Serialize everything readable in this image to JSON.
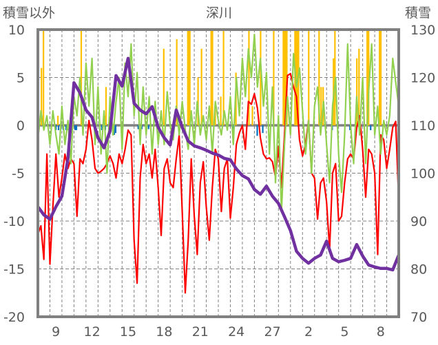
{
  "chart_data": {
    "type": "line",
    "title": "深川",
    "ylabel_left": "積雪以外",
    "ylabel_right": "積雪",
    "x_unit": "day index from Feb 8 (30 days, Feb 8 – Mar 9)",
    "xlim": [
      0,
      30
    ],
    "ylim_left": [
      -20,
      10
    ],
    "ylim_right": [
      70,
      130
    ],
    "yticks_left": [
      10,
      5,
      0,
      -5,
      -10,
      -15,
      -20
    ],
    "yticks_right": [
      130,
      120,
      110,
      100,
      90,
      80,
      70
    ],
    "xticks": [
      {
        "pos": 1.5,
        "label": "9"
      },
      {
        "pos": 4.5,
        "label": "12"
      },
      {
        "pos": 7.5,
        "label": "15"
      },
      {
        "pos": 10.5,
        "label": "18"
      },
      {
        "pos": 13.5,
        "label": "21"
      },
      {
        "pos": 16.5,
        "label": "24"
      },
      {
        "pos": 19.5,
        "label": "27"
      },
      {
        "pos": 22.5,
        "label": "2"
      },
      {
        "pos": 25.5,
        "label": "5"
      },
      {
        "pos": 28.5,
        "label": "8"
      }
    ],
    "grid": true,
    "colors": {
      "red": "#ff0000",
      "green": "#92d050",
      "purple": "#7030a0",
      "orange": "#ffc000",
      "blue": "#0070c0",
      "axis": "#808080",
      "text": "#595959"
    },
    "series": [
      {
        "name": "red",
        "axis": "left",
        "step": 0.25,
        "values": [
          -11.4,
          -10.5,
          -14,
          -3,
          -14.5,
          -8.5,
          -3,
          -7.5,
          -5.5,
          -3,
          -4.5,
          -3.5,
          -4,
          -9.5,
          -3.5,
          -4,
          -2.5,
          0.5,
          -1.5,
          -4.5,
          -5,
          -4.8,
          -4.5,
          -4,
          -3.2,
          -4,
          -5.5,
          -3,
          -4,
          -2.5,
          -0.5,
          -1,
          -12,
          -16.5,
          -5.5,
          -2,
          -4,
          -3,
          -5.5,
          -2.5,
          -6.5,
          -11.5,
          -4.5,
          -3.5,
          -6,
          -6.5,
          -3.5,
          -1,
          -9,
          -17.5,
          -12,
          -3.5,
          -9.5,
          -13.5,
          -6,
          -3.8,
          -8.5,
          -12,
          -6.5,
          -2.5,
          -3.5,
          -9,
          -4.5,
          -3.5,
          -9.7,
          -6.5,
          -2,
          -0.8,
          0,
          -2.5,
          2.5,
          2.2,
          3.3,
          1.8,
          -1.3,
          -3,
          -3.5,
          -3.4,
          -3.8,
          -5.4,
          -2.2,
          -6.5,
          -1,
          5.2,
          5.4,
          4,
          3,
          -1.5,
          -3.2,
          -2,
          0.5,
          -5,
          -5.5,
          -9.8,
          -6,
          -5.5,
          -8,
          -13,
          -5,
          -4,
          -10,
          -9.5,
          -6,
          -3.5,
          -3,
          -3.5,
          -0.3,
          1,
          -2.5,
          -7.5,
          -2.5,
          -3,
          -5,
          -13.5,
          -1,
          -1.5,
          -4.5,
          -2.5,
          -0.2,
          0.4,
          -8
        ]
      },
      {
        "name": "green",
        "axis": "left",
        "step": 0.25,
        "values": [
          -1.5,
          1.5,
          -0.5,
          1,
          -2,
          1.5,
          -1,
          -3,
          2,
          -2,
          0.5,
          -4,
          3,
          1,
          5,
          -1,
          6.5,
          2,
          7,
          -2,
          4,
          -3,
          1.5,
          -5,
          3,
          -1,
          2.5,
          5,
          -2.5,
          6.5,
          3,
          8.5,
          1,
          5.5,
          -2,
          4,
          -1,
          3,
          -3,
          2.5,
          -2,
          1.5,
          -2,
          3.5,
          0,
          -1.5,
          2,
          -1,
          2.5,
          -0.5,
          -2.5,
          1.5,
          -2,
          2.5,
          -1,
          1,
          -1.5,
          2,
          -3,
          2.5,
          0.5,
          -1,
          1.5,
          -0.5,
          3,
          -2,
          5,
          1,
          7,
          3,
          8,
          5,
          9.5,
          4,
          7,
          2,
          5.5,
          -3,
          4,
          -6,
          1,
          -9,
          -2,
          3,
          -1,
          7.5,
          4,
          6,
          1.5,
          -3,
          0.5,
          -5,
          2,
          4,
          -1,
          2.5,
          -2,
          -6,
          2,
          5,
          -3,
          -7,
          -1,
          8.5,
          0,
          -4,
          3,
          -1,
          5,
          -4,
          3.5,
          8.5,
          -1,
          2,
          -3,
          0.5,
          -1,
          1,
          7,
          4.5,
          2
        ]
      },
      {
        "name": "purple",
        "axis": "right",
        "step": 0.5,
        "values": [
          93.0,
          91.3,
          90.4,
          93.0,
          95.2,
          103.1,
          118.9,
          116.8,
          113.2,
          111.7,
          107.4,
          105.3,
          108.8,
          120.4,
          118.2,
          124.0,
          114.6,
          113.2,
          112.4,
          113.9,
          109.6,
          107.4,
          105.9,
          113.2,
          109.6,
          106.7,
          105.7,
          105.3,
          104.8,
          104.2,
          103.8,
          103.1,
          102.8,
          100.9,
          99.5,
          98.8,
          96.6,
          95.6,
          97.3,
          95.2,
          93.7,
          90.9,
          88.0,
          83.7,
          82.2,
          81.2,
          82.2,
          82.9,
          85.8,
          82.2,
          81.5,
          81.8,
          82.2,
          85.1,
          82.7,
          80.8,
          80.4,
          80.1,
          80.1,
          79.8,
          82.9
        ]
      }
    ],
    "bars": [
      {
        "name": "orange",
        "axis": "left",
        "points": [
          [
            0.29,
            6
          ],
          [
            0.46,
            10
          ],
          [
            1.66,
            1
          ],
          [
            3.6,
            10
          ],
          [
            5.54,
            1
          ],
          [
            5.66,
            4
          ],
          [
            10.46,
            8
          ],
          [
            11.54,
            9
          ],
          [
            12.46,
            10
          ],
          [
            12.55,
            10
          ],
          [
            12.63,
            10
          ],
          [
            13.31,
            5
          ],
          [
            13.6,
            8
          ],
          [
            14.4,
            10
          ],
          [
            14.46,
            10
          ],
          [
            14.51,
            10
          ],
          [
            14.74,
            1.6
          ],
          [
            15.2,
            3
          ],
          [
            15.43,
            10
          ],
          [
            16.46,
            5.5
          ],
          [
            17.54,
            10
          ],
          [
            17.83,
            2
          ],
          [
            18.51,
            10
          ],
          [
            19.6,
            10
          ],
          [
            20.4,
            10
          ],
          [
            20.49,
            10
          ],
          [
            20.57,
            10
          ],
          [
            20.69,
            10
          ],
          [
            21.37,
            10
          ],
          [
            21.46,
            10
          ],
          [
            21.54,
            10
          ],
          [
            21.66,
            10
          ],
          [
            22.51,
            10
          ],
          [
            23.37,
            10
          ],
          [
            23.54,
            4
          ],
          [
            23.71,
            4
          ],
          [
            24.57,
            7
          ],
          [
            24.69,
            10
          ],
          [
            26.51,
            7
          ],
          [
            26.69,
            8
          ],
          [
            27.37,
            10
          ],
          [
            27.43,
            10
          ],
          [
            27.49,
            10
          ],
          [
            28.4,
            10
          ],
          [
            28.46,
            10
          ],
          [
            28.51,
            10
          ]
        ]
      },
      {
        "name": "blue",
        "axis": "left",
        "points": [
          [
            1.49,
            -0.5
          ],
          [
            1.71,
            -0.5
          ],
          [
            1.89,
            -0.5
          ],
          [
            2.11,
            -0.5
          ],
          [
            2.34,
            -0.5
          ],
          [
            2.51,
            -0.5
          ],
          [
            2.69,
            -0.5
          ],
          [
            2.86,
            -0.5
          ],
          [
            3.09,
            -0.5
          ],
          [
            3.2,
            -0.5
          ],
          [
            5.31,
            -0.5
          ],
          [
            5.6,
            -0.5
          ],
          [
            6.06,
            -0.5
          ],
          [
            6.23,
            -1
          ],
          [
            6.34,
            -1
          ],
          [
            6.46,
            -0.8
          ],
          [
            8.34,
            -0.4
          ],
          [
            8.63,
            -0.4
          ],
          [
            8.97,
            -0.4
          ],
          [
            9.2,
            -0.4
          ],
          [
            16.23,
            -0.6
          ],
          [
            18.23,
            -1.1
          ],
          [
            18.69,
            -0.8
          ],
          [
            24.46,
            -0.5
          ],
          [
            25.94,
            -0.5
          ],
          [
            27.66,
            -0.5
          ]
        ]
      }
    ]
  }
}
